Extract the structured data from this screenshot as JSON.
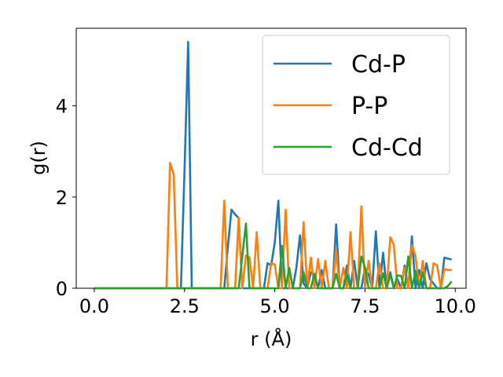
{
  "chart_data": {
    "type": "line",
    "xlabel": "r (Å)",
    "ylabel": "g(r)",
    "xlim": [
      -0.5,
      10.3
    ],
    "ylim": [
      0,
      5.7
    ],
    "xticks": [
      0.0,
      2.5,
      5.0,
      7.5,
      10.0
    ],
    "xtick_labels": [
      "0.0",
      "2.5",
      "5.0",
      "7.5",
      "10.0"
    ],
    "yticks": [
      0,
      2,
      4
    ],
    "ytick_labels": [
      "0",
      "2",
      "4"
    ],
    "grid": false,
    "legend_position": "top-right",
    "series": [
      {
        "name": "Cd-P",
        "color": "#1f77b4",
        "x": [
          0.0,
          2.4,
          2.5,
          2.6,
          2.7,
          2.8,
          3.5,
          3.6,
          3.7,
          3.8,
          3.9,
          4.0,
          4.1,
          4.2,
          4.3,
          4.4,
          4.5,
          4.6,
          4.7,
          4.8,
          4.9,
          5.0,
          5.1,
          5.2,
          5.3,
          5.4,
          5.5,
          5.6,
          5.7,
          5.8,
          5.9,
          6.0,
          6.1,
          6.2,
          6.3,
          6.4,
          6.5,
          6.6,
          6.7,
          6.8,
          6.9,
          7.0,
          7.1,
          7.2,
          7.3,
          7.4,
          7.5,
          7.6,
          7.7,
          7.8,
          7.9,
          8.0,
          8.1,
          8.2,
          8.3,
          8.4,
          8.5,
          8.6,
          8.7,
          8.8,
          8.9,
          9.0,
          9.1,
          9.2,
          9.3,
          9.4,
          9.5,
          9.6,
          9.7,
          9.8,
          9.9
        ],
        "y": [
          0.0,
          0.0,
          2.6,
          5.4,
          0.0,
          0.0,
          0.0,
          0.0,
          0.9,
          1.72,
          1.62,
          1.54,
          0.0,
          0.0,
          0.0,
          0.0,
          0.0,
          0.0,
          0.0,
          0.55,
          0.5,
          1.0,
          1.92,
          0.0,
          0.0,
          0.0,
          0.0,
          0.45,
          1.16,
          0.1,
          0.0,
          0.35,
          0.3,
          0.0,
          0.4,
          0.0,
          0.0,
          0.0,
          1.4,
          0.0,
          0.0,
          0.5,
          0.0,
          0.6,
          0.0,
          0.0,
          0.45,
          0.3,
          0.0,
          1.25,
          0.0,
          0.78,
          0.0,
          0.35,
          0.0,
          0.2,
          0.0,
          0.5,
          0.0,
          1.14,
          0.0,
          0.4,
          0.0,
          0.55,
          0.2,
          0.1,
          0.0,
          0.0,
          0.67,
          0.65,
          0.63
        ]
      },
      {
        "name": "P-P",
        "color": "#ff7f0e",
        "x": [
          0.0,
          2.0,
          2.1,
          2.2,
          2.3,
          2.4,
          3.5,
          3.6,
          3.7,
          3.8,
          3.9,
          4.0,
          4.1,
          4.2,
          4.3,
          4.4,
          4.5,
          4.6,
          4.7,
          4.8,
          4.9,
          5.0,
          5.1,
          5.2,
          5.3,
          5.4,
          5.5,
          5.6,
          5.7,
          5.8,
          5.9,
          6.0,
          6.1,
          6.2,
          6.3,
          6.4,
          6.5,
          6.6,
          6.7,
          6.8,
          6.9,
          7.0,
          7.1,
          7.2,
          7.3,
          7.4,
          7.5,
          7.6,
          7.7,
          7.8,
          7.9,
          8.0,
          8.1,
          8.2,
          8.3,
          8.4,
          8.5,
          8.6,
          8.7,
          8.8,
          8.9,
          9.0,
          9.1,
          9.2,
          9.3,
          9.4,
          9.5,
          9.6,
          9.7,
          9.8,
          9.9
        ],
        "y": [
          0.0,
          0.0,
          2.75,
          2.5,
          0.0,
          0.0,
          0.0,
          1.92,
          0.0,
          0.0,
          0.0,
          1.55,
          0.0,
          0.72,
          0.68,
          0.0,
          1.23,
          0.0,
          0.0,
          0.0,
          0.55,
          0.52,
          0.0,
          0.0,
          1.72,
          0.0,
          0.0,
          0.0,
          0.0,
          1.45,
          0.0,
          0.67,
          0.0,
          0.64,
          0.0,
          0.6,
          0.0,
          0.0,
          0.85,
          0.0,
          0.45,
          0.0,
          1.23,
          0.0,
          0.0,
          1.8,
          0.0,
          0.6,
          0.0,
          0.0,
          0.55,
          0.0,
          0.0,
          1.12,
          0.95,
          0.0,
          0.0,
          0.45,
          0.0,
          0.95,
          0.7,
          0.0,
          0.6,
          0.0,
          0.0,
          0.55,
          0.5,
          0.0,
          0.42,
          0.4,
          0.4
        ]
      },
      {
        "name": "Cd-Cd",
        "color": "#2ca02c",
        "x": [
          0.0,
          3.9,
          4.0,
          4.1,
          4.2,
          4.3,
          4.4,
          4.5,
          4.6,
          4.7,
          4.8,
          4.9,
          5.0,
          5.1,
          5.2,
          5.3,
          5.4,
          5.5,
          5.6,
          5.7,
          5.8,
          5.9,
          6.0,
          6.1,
          6.2,
          6.3,
          6.4,
          6.5,
          6.6,
          6.7,
          6.8,
          6.9,
          7.0,
          7.1,
          7.2,
          7.3,
          7.4,
          7.5,
          7.6,
          7.7,
          7.8,
          7.9,
          8.0,
          8.1,
          8.2,
          8.3,
          8.4,
          8.5,
          8.6,
          8.7,
          8.8,
          8.9,
          9.0,
          9.1,
          9.2,
          9.3,
          9.4,
          9.5,
          9.6,
          9.7,
          9.8,
          9.9
        ],
        "y": [
          0.0,
          0.0,
          0.0,
          0.7,
          1.42,
          0.0,
          0.0,
          0.0,
          0.0,
          0.0,
          0.0,
          0.0,
          0.0,
          0.0,
          0.93,
          0.0,
          0.45,
          0.0,
          0.0,
          0.0,
          0.35,
          0.0,
          0.0,
          0.32,
          0.0,
          0.0,
          0.0,
          0.0,
          0.0,
          0.32,
          0.0,
          0.0,
          0.3,
          0.0,
          0.0,
          0.0,
          0.7,
          0.45,
          0.0,
          0.0,
          0.0,
          0.0,
          0.33,
          0.0,
          0.3,
          0.0,
          0.28,
          0.27,
          0.0,
          0.7,
          0.0,
          0.38,
          0.0,
          0.35,
          0.0,
          0.0,
          0.0,
          0.0,
          0.0,
          0.0,
          0.05,
          0.15
        ]
      }
    ]
  }
}
